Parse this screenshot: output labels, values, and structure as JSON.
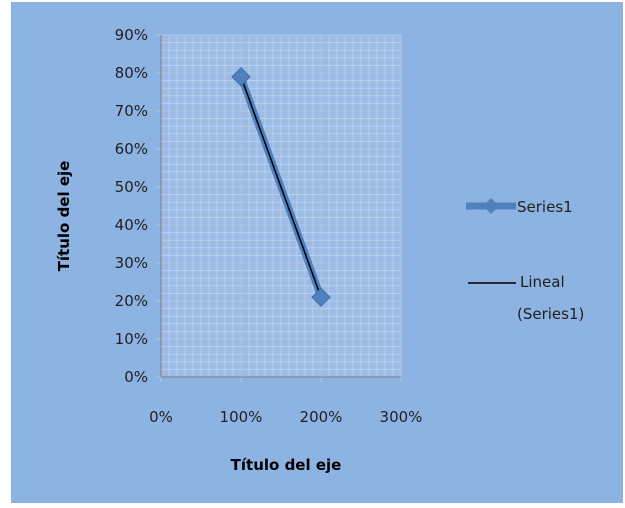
{
  "chart_data": {
    "type": "scatter",
    "xlabel": "Título del eje",
    "ylabel": "Título del eje",
    "xlim": [
      0,
      3
    ],
    "ylim": [
      0,
      0.9
    ],
    "x_ticks": [
      "0%",
      "100%",
      "200%",
      "300%"
    ],
    "y_ticks": [
      "0%",
      "10%",
      "20%",
      "30%",
      "40%",
      "50%",
      "60%",
      "70%",
      "80%",
      "90%"
    ],
    "grid": true,
    "legend_position": "right",
    "series": [
      {
        "name": "Series1",
        "x": [
          1.0,
          2.0
        ],
        "y": [
          0.79,
          0.21
        ],
        "color": "#4f81bd",
        "marker": "diamond"
      }
    ],
    "trendline": {
      "name_line1": "Lineal",
      "name_line2": "(Series1)",
      "type": "linear",
      "color": "#000000"
    }
  },
  "colors": {
    "chart_background": "#8db3e2",
    "plot_background": "#9cbce6",
    "gridline": "#c8d8ee"
  }
}
